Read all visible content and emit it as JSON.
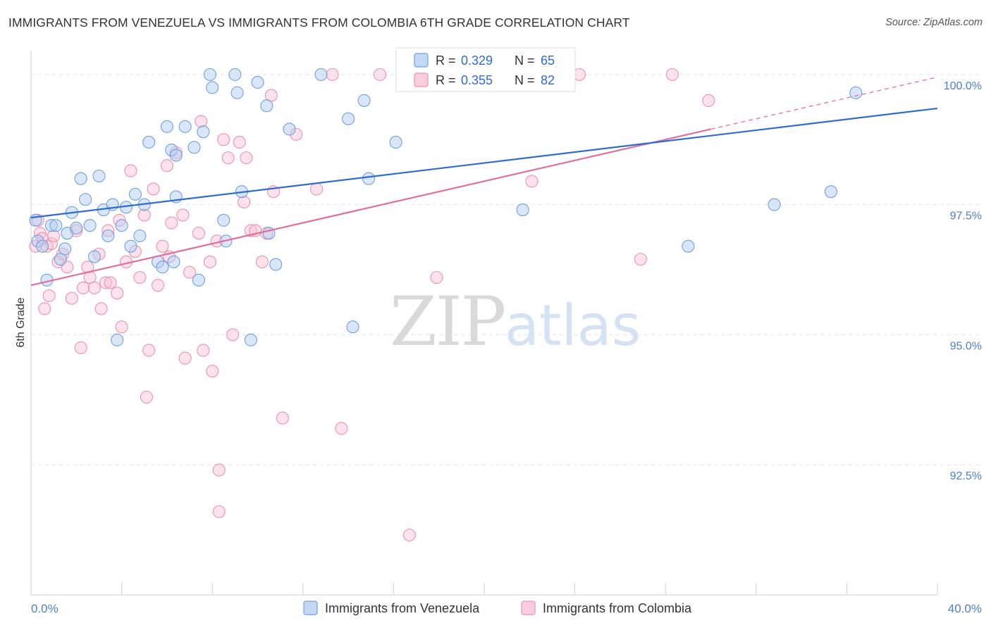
{
  "title": "IMMIGRANTS FROM VENEZUELA VS IMMIGRANTS FROM COLOMBIA 6TH GRADE CORRELATION CHART",
  "source": "Source: ZipAtlas.com",
  "watermark": {
    "zip": "ZIP",
    "atlas": "atlas"
  },
  "legend_stats": [
    {
      "r_label": "R =",
      "r_value": "0.329",
      "n_label": "N =",
      "n_value": "65"
    },
    {
      "r_label": "R =",
      "r_value": "0.355",
      "n_label": "N =",
      "n_value": "82"
    }
  ],
  "chart_data": {
    "type": "scatter",
    "title": "IMMIGRANTS FROM VENEZUELA VS IMMIGRANTS FROM COLOMBIA 6TH GRADE CORRELATION CHART",
    "xlabel": "",
    "ylabel": "6th Grade",
    "xlim": [
      0,
      40
    ],
    "ylim": [
      90.0,
      100.35
    ],
    "x_tick_labels": [
      "0.0%",
      "40.0%"
    ],
    "y_ticks": [
      92.5,
      95.0,
      97.5,
      100.0
    ],
    "y_tick_labels": [
      "92.5%",
      "95.0%",
      "97.5%",
      "100.0%"
    ],
    "grid": true,
    "legend_position": "top-center",
    "colors": {
      "venezuela": "#6fa0e0",
      "colombia": "#ee90b0",
      "venezuela_line": "#2f6bd1",
      "colombia_line": "#e0709a"
    },
    "series": [
      {
        "name": "Immigrants from Venezuela",
        "r": 0.329,
        "n": 65,
        "trend": {
          "x": [
            0,
            40
          ],
          "y": [
            97.25,
            99.35
          ]
        },
        "points": [
          [
            0.2,
            97.2
          ],
          [
            0.3,
            96.8
          ],
          [
            0.5,
            96.7
          ],
          [
            0.7,
            96.05
          ],
          [
            0.9,
            97.1
          ],
          [
            1.1,
            97.1
          ],
          [
            1.3,
            96.45
          ],
          [
            1.5,
            96.65
          ],
          [
            1.6,
            96.95
          ],
          [
            1.8,
            97.35
          ],
          [
            2.0,
            97.05
          ],
          [
            2.2,
            98.0
          ],
          [
            2.4,
            97.6
          ],
          [
            2.6,
            97.1
          ],
          [
            2.8,
            96.5
          ],
          [
            3.0,
            98.05
          ],
          [
            3.2,
            97.4
          ],
          [
            3.4,
            96.9
          ],
          [
            3.6,
            97.5
          ],
          [
            3.8,
            94.9
          ],
          [
            4.0,
            97.1
          ],
          [
            4.2,
            97.45
          ],
          [
            4.4,
            96.7
          ],
          [
            4.6,
            97.7
          ],
          [
            4.8,
            96.9
          ],
          [
            5.0,
            97.5
          ],
          [
            5.2,
            98.7
          ],
          [
            5.6,
            96.4
          ],
          [
            5.8,
            96.3
          ],
          [
            6.0,
            99.0
          ],
          [
            6.2,
            98.55
          ],
          [
            6.4,
            98.45
          ],
          [
            6.3,
            96.4
          ],
          [
            6.4,
            97.65
          ],
          [
            6.8,
            99.0
          ],
          [
            7.2,
            98.6
          ],
          [
            7.4,
            96.05
          ],
          [
            7.6,
            98.9
          ],
          [
            7.9,
            100.0
          ],
          [
            8.0,
            99.75
          ],
          [
            8.5,
            97.2
          ],
          [
            8.6,
            96.8
          ],
          [
            9.0,
            100.0
          ],
          [
            9.1,
            99.65
          ],
          [
            9.3,
            97.75
          ],
          [
            9.7,
            94.9
          ],
          [
            10.0,
            99.85
          ],
          [
            10.4,
            99.4
          ],
          [
            10.5,
            96.95
          ],
          [
            10.8,
            96.35
          ],
          [
            11.4,
            98.95
          ],
          [
            12.8,
            100.0
          ],
          [
            14.0,
            99.15
          ],
          [
            14.2,
            95.15
          ],
          [
            14.7,
            99.5
          ],
          [
            14.9,
            98.0
          ],
          [
            16.1,
            98.7
          ],
          [
            21.1,
            100.0
          ],
          [
            21.7,
            97.4
          ],
          [
            29.0,
            96.7
          ],
          [
            32.8,
            97.5
          ],
          [
            35.3,
            97.75
          ],
          [
            36.4,
            99.65
          ]
        ]
      },
      {
        "name": "Immigrants from Colombia",
        "r": 0.355,
        "n": 82,
        "trend": {
          "x": [
            0,
            30
          ],
          "y": [
            95.95,
            98.95
          ]
        },
        "trend_dashed": {
          "x": [
            30,
            40
          ],
          "y": [
            98.95,
            99.95
          ]
        },
        "points": [
          [
            0.2,
            96.7
          ],
          [
            0.3,
            97.2
          ],
          [
            0.4,
            96.95
          ],
          [
            0.5,
            96.85
          ],
          [
            0.6,
            95.5
          ],
          [
            0.7,
            96.7
          ],
          [
            0.8,
            95.75
          ],
          [
            0.9,
            96.75
          ],
          [
            1.0,
            96.9
          ],
          [
            1.2,
            96.4
          ],
          [
            1.4,
            96.55
          ],
          [
            1.6,
            96.3
          ],
          [
            1.8,
            95.7
          ],
          [
            2.0,
            97.0
          ],
          [
            2.2,
            94.75
          ],
          [
            2.3,
            95.9
          ],
          [
            2.5,
            96.3
          ],
          [
            2.6,
            96.1
          ],
          [
            2.8,
            95.9
          ],
          [
            3.0,
            96.55
          ],
          [
            3.1,
            95.5
          ],
          [
            3.3,
            96.0
          ],
          [
            3.4,
            97.0
          ],
          [
            3.5,
            96.0
          ],
          [
            3.8,
            95.8
          ],
          [
            3.9,
            97.2
          ],
          [
            4.0,
            95.15
          ],
          [
            4.2,
            96.4
          ],
          [
            4.4,
            98.15
          ],
          [
            4.6,
            96.6
          ],
          [
            4.8,
            96.1
          ],
          [
            5.0,
            97.3
          ],
          [
            5.1,
            93.8
          ],
          [
            5.2,
            94.7
          ],
          [
            5.4,
            97.8
          ],
          [
            5.6,
            95.95
          ],
          [
            5.8,
            96.7
          ],
          [
            6.0,
            98.25
          ],
          [
            6.1,
            96.5
          ],
          [
            6.2,
            97.15
          ],
          [
            6.4,
            98.5
          ],
          [
            6.7,
            97.3
          ],
          [
            6.8,
            94.55
          ],
          [
            7.0,
            96.2
          ],
          [
            7.4,
            96.95
          ],
          [
            7.5,
            99.1
          ],
          [
            7.6,
            94.7
          ],
          [
            7.9,
            96.4
          ],
          [
            8.0,
            94.3
          ],
          [
            8.2,
            96.8
          ],
          [
            8.3,
            92.4
          ],
          [
            8.5,
            98.75
          ],
          [
            8.7,
            98.4
          ],
          [
            8.9,
            95.0
          ],
          [
            9.2,
            98.7
          ],
          [
            9.4,
            97.55
          ],
          [
            9.5,
            98.4
          ],
          [
            9.7,
            97.0
          ],
          [
            9.9,
            97.0
          ],
          [
            10.2,
            96.4
          ],
          [
            10.4,
            96.95
          ],
          [
            10.7,
            97.75
          ],
          [
            10.6,
            99.6
          ],
          [
            11.1,
            93.4
          ],
          [
            11.7,
            98.85
          ],
          [
            12.6,
            97.8
          ],
          [
            13.3,
            100.0
          ],
          [
            13.7,
            93.2
          ],
          [
            15.4,
            100.0
          ],
          [
            16.7,
            91.15
          ],
          [
            17.9,
            96.1
          ],
          [
            19.6,
            100.0
          ],
          [
            22.1,
            97.95
          ],
          [
            24.2,
            100.0
          ],
          [
            26.9,
            96.45
          ],
          [
            28.3,
            100.0
          ],
          [
            29.9,
            99.5
          ],
          [
            8.3,
            91.6
          ]
        ]
      }
    ]
  },
  "bottom_legend": [
    {
      "label": "Immigrants from Venezuela"
    },
    {
      "label": "Immigrants from Colombia"
    }
  ]
}
